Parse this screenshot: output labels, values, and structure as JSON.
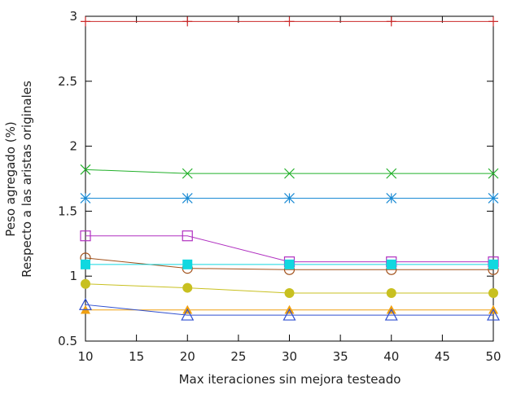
{
  "chart_data": {
    "type": "line",
    "title": "",
    "xlabel": "Max iteraciones sin mejora testeado",
    "ylabel_line1": "Peso agregado (%)",
    "ylabel_line2": "Respecto a las aristas originales",
    "xlim": [
      10,
      50
    ],
    "ylim": [
      0.5,
      3
    ],
    "xticks": [
      10,
      15,
      20,
      25,
      30,
      35,
      40,
      45,
      50
    ],
    "yticks": [
      0.5,
      1,
      1.5,
      2,
      2.5,
      3
    ],
    "ytick_labels": [
      "0.5",
      "1",
      "1.5",
      "2",
      "2.5",
      "3"
    ],
    "grid": false,
    "legend": "none",
    "x": [
      10,
      20,
      30,
      40,
      50
    ],
    "series": [
      {
        "color": "#cc2a2a",
        "marker": "plus",
        "values": [
          2.96,
          2.96,
          2.96,
          2.96,
          2.96
        ]
      },
      {
        "color": "#22b02a",
        "marker": "cross",
        "values": [
          1.82,
          1.79,
          1.79,
          1.79,
          1.79
        ]
      },
      {
        "color": "#1a8ad4",
        "marker": "star",
        "values": [
          1.6,
          1.6,
          1.6,
          1.6,
          1.6
        ]
      },
      {
        "color": "#b030c0",
        "marker": "square-open",
        "values": [
          1.31,
          1.31,
          1.11,
          1.11,
          1.11
        ]
      },
      {
        "color": "#a0501a",
        "marker": "circle-open",
        "values": [
          1.14,
          1.06,
          1.05,
          1.05,
          1.05
        ]
      },
      {
        "color": "#10d8e0",
        "marker": "square-filled",
        "values": [
          1.09,
          1.09,
          1.09,
          1.09,
          1.09
        ]
      },
      {
        "color": "#c8c020",
        "marker": "circle-filled",
        "values": [
          0.94,
          0.91,
          0.87,
          0.87,
          0.87
        ]
      },
      {
        "color": "#f0a010",
        "marker": "triangle-filled",
        "values": [
          0.74,
          0.74,
          0.74,
          0.74,
          0.74
        ]
      },
      {
        "color": "#3050d0",
        "marker": "triangle-open",
        "values": [
          0.78,
          0.7,
          0.7,
          0.7,
          0.7
        ]
      }
    ]
  }
}
